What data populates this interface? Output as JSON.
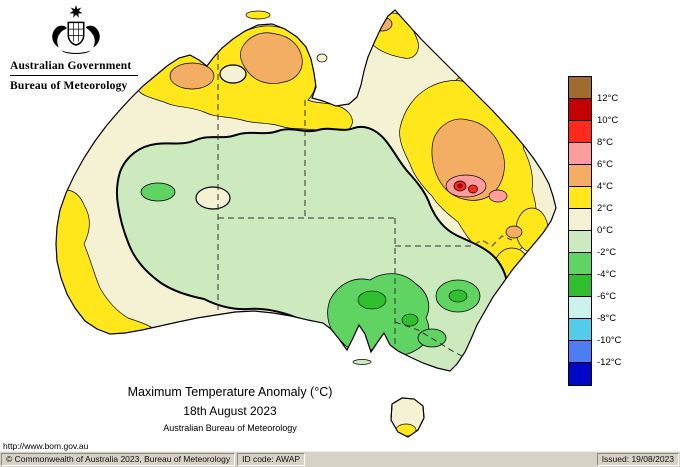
{
  "branding": {
    "government": "Australian Government",
    "bureau": "Bureau of Meteorology"
  },
  "caption": {
    "title": "Maximum Temperature Anomaly (°C)",
    "date": "18th August 2023",
    "source": "Australian Bureau of Meteorology"
  },
  "url": "http://www.bom.gov.au",
  "legend": {
    "cells": [
      "#9E6B30",
      "#C40000",
      "#FF2A1B",
      "#FF9C9C",
      "#F4AE63",
      "#FFE71C",
      "#F5F2D4",
      "#CDEABF",
      "#5FD463",
      "#2FBF2F",
      "#CCF2EE",
      "#55CBEA",
      "#4D7DF0",
      "#0008C8"
    ],
    "labels": [
      "12°C",
      "10°C",
      "8°C",
      "6°C",
      "4°C",
      "2°C",
      "0°C",
      "-2°C",
      "-4°C",
      "-6°C",
      "-8°C",
      "-10°C",
      "-12°C"
    ]
  },
  "footer": {
    "copyright": "© Commonwealth of Australia 2023, Bureau of Meteorology",
    "id_code": "ID code: AWAP",
    "issued": "Issued: 19/08/2023"
  }
}
